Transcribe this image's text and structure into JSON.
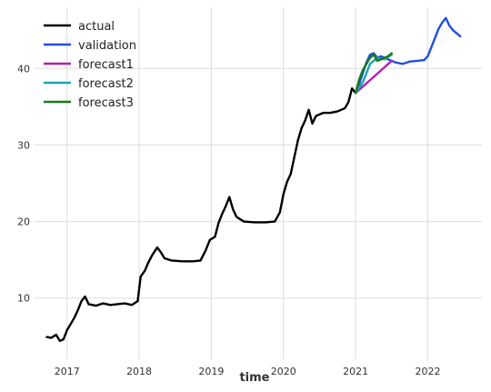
{
  "chart_data": {
    "type": "line",
    "xlabel": "time",
    "ylabel": "",
    "title": "",
    "xlim": [
      2016.55,
      2022.75
    ],
    "ylim": [
      2,
      48
    ],
    "x_ticks": [
      {
        "value": 2017,
        "label": "2017"
      },
      {
        "value": 2018,
        "label": "2018"
      },
      {
        "value": 2019,
        "label": "2019"
      },
      {
        "value": 2020,
        "label": "2020"
      },
      {
        "value": 2021,
        "label": "2021"
      },
      {
        "value": 2022,
        "label": "2022"
      }
    ],
    "y_ticks": [
      {
        "value": 10,
        "label": "10"
      },
      {
        "value": 20,
        "label": "20"
      },
      {
        "value": 30,
        "label": "30"
      },
      {
        "value": 40,
        "label": "40"
      }
    ],
    "grid": true,
    "legend_position": "top-left",
    "series": [
      {
        "name": "actual",
        "color": "#000000",
        "points": [
          [
            2016.72,
            4.9
          ],
          [
            2016.78,
            4.8
          ],
          [
            2016.85,
            5.2
          ],
          [
            2016.9,
            4.4
          ],
          [
            2016.95,
            4.6
          ],
          [
            2017.0,
            5.8
          ],
          [
            2017.05,
            6.6
          ],
          [
            2017.1,
            7.4
          ],
          [
            2017.15,
            8.4
          ],
          [
            2017.2,
            9.6
          ],
          [
            2017.25,
            10.2
          ],
          [
            2017.3,
            9.2
          ],
          [
            2017.4,
            9.0
          ],
          [
            2017.5,
            9.3
          ],
          [
            2017.6,
            9.1
          ],
          [
            2017.7,
            9.2
          ],
          [
            2017.8,
            9.3
          ],
          [
            2017.9,
            9.1
          ],
          [
            2017.98,
            9.6
          ],
          [
            2018.02,
            12.8
          ],
          [
            2018.08,
            13.6
          ],
          [
            2018.12,
            14.5
          ],
          [
            2018.18,
            15.6
          ],
          [
            2018.25,
            16.6
          ],
          [
            2018.3,
            16.0
          ],
          [
            2018.35,
            15.2
          ],
          [
            2018.45,
            14.9
          ],
          [
            2018.6,
            14.8
          ],
          [
            2018.75,
            14.8
          ],
          [
            2018.85,
            14.9
          ],
          [
            2018.92,
            16.2
          ],
          [
            2018.98,
            17.6
          ],
          [
            2019.05,
            18.0
          ],
          [
            2019.1,
            19.8
          ],
          [
            2019.15,
            21.0
          ],
          [
            2019.2,
            22.0
          ],
          [
            2019.25,
            23.2
          ],
          [
            2019.3,
            21.6
          ],
          [
            2019.35,
            20.6
          ],
          [
            2019.45,
            20.0
          ],
          [
            2019.6,
            19.9
          ],
          [
            2019.75,
            19.9
          ],
          [
            2019.88,
            20.0
          ],
          [
            2019.95,
            21.2
          ],
          [
            2020.0,
            23.6
          ],
          [
            2020.05,
            25.2
          ],
          [
            2020.1,
            26.2
          ],
          [
            2020.15,
            28.4
          ],
          [
            2020.2,
            30.6
          ],
          [
            2020.25,
            32.2
          ],
          [
            2020.3,
            33.2
          ],
          [
            2020.35,
            34.6
          ],
          [
            2020.4,
            32.8
          ],
          [
            2020.45,
            33.8
          ],
          [
            2020.55,
            34.2
          ],
          [
            2020.65,
            34.2
          ],
          [
            2020.75,
            34.4
          ],
          [
            2020.85,
            34.8
          ],
          [
            2020.9,
            35.6
          ],
          [
            2020.95,
            37.4
          ],
          [
            2021.0,
            36.8
          ]
        ]
      },
      {
        "name": "validation",
        "color": "#1f4fe0",
        "points": [
          [
            2021.0,
            36.8
          ],
          [
            2021.05,
            38.0
          ],
          [
            2021.1,
            39.4
          ],
          [
            2021.15,
            40.8
          ],
          [
            2021.2,
            41.8
          ],
          [
            2021.25,
            42.0
          ],
          [
            2021.3,
            41.4
          ],
          [
            2021.35,
            41.6
          ],
          [
            2021.45,
            41.2
          ],
          [
            2021.55,
            40.8
          ],
          [
            2021.65,
            40.6
          ],
          [
            2021.75,
            40.9
          ],
          [
            2021.85,
            41.0
          ],
          [
            2021.95,
            41.1
          ],
          [
            2022.0,
            41.6
          ],
          [
            2022.05,
            42.8
          ],
          [
            2022.1,
            44.0
          ],
          [
            2022.15,
            45.2
          ],
          [
            2022.2,
            46.0
          ],
          [
            2022.25,
            46.6
          ],
          [
            2022.3,
            45.6
          ],
          [
            2022.35,
            45.0
          ],
          [
            2022.4,
            44.6
          ],
          [
            2022.45,
            44.2
          ]
        ]
      },
      {
        "name": "forecast1",
        "color": "#b31fb3",
        "points": [
          [
            2021.0,
            36.8
          ],
          [
            2021.5,
            41.0
          ]
        ]
      },
      {
        "name": "forecast2",
        "color": "#1aa3b3",
        "points": [
          [
            2021.0,
            36.8
          ],
          [
            2021.1,
            38.2
          ],
          [
            2021.2,
            40.6
          ],
          [
            2021.3,
            41.4
          ],
          [
            2021.4,
            41.2
          ],
          [
            2021.5,
            41.8
          ]
        ]
      },
      {
        "name": "forecast3",
        "color": "#1a7a1a",
        "points": [
          [
            2021.0,
            36.8
          ],
          [
            2021.05,
            38.6
          ],
          [
            2021.1,
            39.8
          ],
          [
            2021.15,
            40.6
          ],
          [
            2021.2,
            41.4
          ],
          [
            2021.25,
            41.8
          ],
          [
            2021.3,
            41.0
          ],
          [
            2021.35,
            41.2
          ],
          [
            2021.4,
            41.4
          ],
          [
            2021.45,
            41.6
          ],
          [
            2021.5,
            42.0
          ]
        ]
      }
    ]
  }
}
